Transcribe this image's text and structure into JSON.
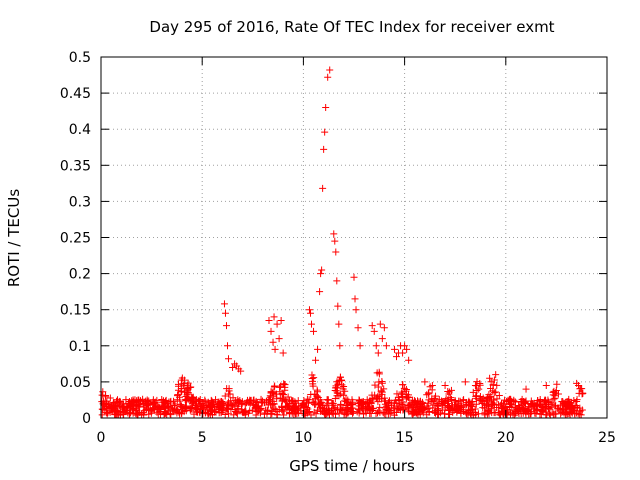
{
  "chart_data": {
    "type": "scatter",
    "title": "Day 295 of 2016, Rate Of TEC Index for receiver exmt",
    "xlabel": "GPS time / hours",
    "ylabel": "ROTI / TECUs",
    "xlim": [
      0,
      25
    ],
    "ylim": [
      0,
      0.5
    ],
    "x_ticks": [
      0,
      5,
      10,
      15,
      20,
      25
    ],
    "y_ticks": [
      0,
      0.05,
      0.1,
      0.15,
      0.2,
      0.25,
      0.3,
      0.35,
      0.4,
      0.45,
      0.5
    ],
    "grid": true,
    "marker": "+",
    "marker_color": "#ff0000",
    "series": [
      {
        "name": "ROTI",
        "x": [
          6.1,
          6.15,
          6.2,
          6.25,
          6.3,
          6.5,
          6.6,
          6.7,
          6.8,
          6.9,
          8.3,
          8.4,
          8.5,
          8.55,
          8.6,
          8.7,
          8.8,
          8.9,
          9.0,
          10.3,
          10.35,
          10.4,
          10.5,
          10.6,
          10.7,
          10.8,
          10.85,
          10.9,
          10.95,
          11.0,
          11.05,
          11.1,
          11.2,
          11.3,
          11.5,
          11.55,
          11.6,
          11.65,
          11.7,
          11.75,
          11.8,
          12.5,
          12.55,
          12.6,
          12.7,
          12.8,
          13.4,
          13.5,
          13.6,
          13.7,
          13.8,
          13.9,
          14.0,
          14.1,
          14.5,
          14.6,
          14.7,
          14.8,
          14.9,
          15.0,
          15.1,
          15.2,
          16.0,
          17.0,
          18.0,
          18.5,
          19.2,
          19.5,
          21.0,
          22.0,
          23.5
        ],
        "y": [
          0.158,
          0.145,
          0.128,
          0.1,
          0.082,
          0.07,
          0.075,
          0.072,
          0.068,
          0.065,
          0.135,
          0.12,
          0.105,
          0.14,
          0.095,
          0.13,
          0.11,
          0.135,
          0.09,
          0.15,
          0.145,
          0.13,
          0.12,
          0.08,
          0.095,
          0.175,
          0.2,
          0.205,
          0.318,
          0.372,
          0.396,
          0.43,
          0.472,
          0.482,
          0.255,
          0.245,
          0.23,
          0.19,
          0.155,
          0.13,
          0.1,
          0.195,
          0.165,
          0.15,
          0.125,
          0.1,
          0.128,
          0.12,
          0.1,
          0.09,
          0.13,
          0.11,
          0.125,
          0.1,
          0.095,
          0.085,
          0.09,
          0.1,
          0.09,
          0.1,
          0.095,
          0.08,
          0.05,
          0.045,
          0.05,
          0.045,
          0.055,
          0.06,
          0.04,
          0.045,
          0.048
        ]
      }
    ]
  }
}
